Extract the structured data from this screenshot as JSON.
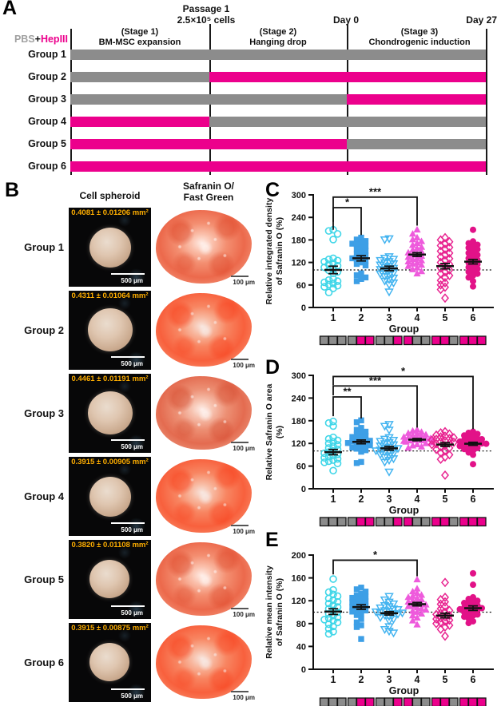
{
  "colors": {
    "pbs_gray": "#8C8C8C",
    "hep_magenta": "#EC008C",
    "area_text_orange": "#FFAE00",
    "axis_black": "#1a1a1a",
    "legend_pbs_gray": "#A0A0A0"
  },
  "panelA": {
    "label": "A",
    "legend": {
      "pbs": "PBS",
      "plus": "+",
      "hep": "HepIII"
    },
    "milestones": {
      "passage_line1": "Passage 1",
      "passage_line2": "2.5×10⁵ cells",
      "day0": "Day 0",
      "day27": "Day 27"
    },
    "stages": [
      {
        "title": "(Stage 1)",
        "desc": "BM-MSC expansion"
      },
      {
        "title": "(Stage 2)",
        "desc": "Hanging drop"
      },
      {
        "title": "(Stage 3)",
        "desc": "Chondrogenic induction"
      }
    ],
    "groups": [
      {
        "name": "Group 1",
        "segments": [
          "gray",
          "gray",
          "gray"
        ]
      },
      {
        "name": "Group 2",
        "segments": [
          "gray",
          "magenta",
          "magenta"
        ]
      },
      {
        "name": "Group 3",
        "segments": [
          "gray",
          "gray",
          "magenta"
        ]
      },
      {
        "name": "Group 4",
        "segments": [
          "magenta",
          "gray",
          "gray"
        ]
      },
      {
        "name": "Group 5",
        "segments": [
          "magenta",
          "magenta",
          "gray"
        ]
      },
      {
        "name": "Group 6",
        "segments": [
          "magenta",
          "magenta",
          "magenta"
        ]
      }
    ]
  },
  "panelB": {
    "label": "B",
    "col1_header": "Cell spheroid",
    "col2_header_line1": "Safranin O/",
    "col2_header_line2": "Fast Green",
    "scale_spheroid": "500 μm",
    "scale_stain": "100 μm",
    "rows": [
      {
        "group": "Group 1",
        "area": "0.4081 ± 0.01206 mm²"
      },
      {
        "group": "Group 2",
        "area": "0.4311 ± 0.01064 mm²"
      },
      {
        "group": "Group 3",
        "area": "0.4461 ± 0.01191 mm²"
      },
      {
        "group": "Group 4",
        "area": "0.3915 ± 0.00905 mm²"
      },
      {
        "group": "Group 5",
        "area": "0.3820 ± 0.01108 mm²"
      },
      {
        "group": "Group 6",
        "area": "0.3915 ± 0.00875 mm²"
      }
    ]
  },
  "chart_data": [
    {
      "id": "C",
      "panel_label": "C",
      "type": "scatter",
      "ylabel_lines": [
        "Relative integrated density",
        "of Safranin O (%)"
      ],
      "xlabel": "Group",
      "ylim": [
        0,
        300
      ],
      "yticks": [
        0,
        60,
        120,
        180,
        240,
        300
      ],
      "baseline": 100,
      "categories": [
        "1",
        "2",
        "3",
        "4",
        "5",
        "6"
      ],
      "legend_position": "none",
      "series": [
        {
          "group": "1",
          "marker": "circle-open",
          "color": "#3FD6E8",
          "mean": 100,
          "sem": 10,
          "values": [
            207,
            204,
            196,
            181,
            131,
            128,
            125,
            122,
            118,
            115,
            111,
            107,
            103,
            99,
            95,
            91,
            76,
            73,
            70,
            67,
            64,
            61,
            58,
            55,
            51,
            40
          ]
        },
        {
          "group": "2",
          "marker": "square-fill",
          "color": "#3D9FE6",
          "mean": 131,
          "sem": 7,
          "values": [
            186,
            181,
            177,
            173,
            170,
            167,
            163,
            159,
            155,
            151,
            146,
            142,
            138,
            134,
            131,
            128,
            124,
            120,
            116,
            112,
            91,
            86,
            80,
            76,
            70
          ]
        },
        {
          "group": "3",
          "marker": "triangle-down-open",
          "color": "#44B4F0",
          "mean": 104,
          "sem": 6,
          "values": [
            184,
            181,
            136,
            132,
            129,
            126,
            123,
            120,
            117,
            114,
            111,
            108,
            105,
            102,
            99,
            96,
            93,
            90,
            87,
            83,
            79,
            75,
            71,
            66,
            61,
            42
          ]
        },
        {
          "group": "4",
          "marker": "triangle-up-fill",
          "color": "#EE5ADC",
          "mean": 141,
          "sem": 5,
          "values": [
            207,
            196,
            186,
            181,
            176,
            171,
            166,
            161,
            157,
            153,
            149,
            146,
            143,
            140,
            137,
            134,
            131,
            128,
            125,
            122,
            119,
            116,
            113,
            110,
            106,
            101,
            96,
            90
          ]
        },
        {
          "group": "5",
          "marker": "diamond-open",
          "color": "#E82490",
          "mean": 110,
          "sem": 7,
          "values": [
            186,
            180,
            175,
            170,
            165,
            160,
            155,
            150,
            145,
            140,
            135,
            130,
            125,
            120,
            115,
            110,
            105,
            100,
            95,
            90,
            85,
            80,
            72,
            66,
            60,
            54,
            48,
            25
          ]
        },
        {
          "group": "6",
          "marker": "circle-fill",
          "color": "#E21288",
          "mean": 122,
          "sem": 6,
          "values": [
            207,
            176,
            171,
            167,
            163,
            159,
            155,
            150,
            145,
            140,
            135,
            131,
            127,
            123,
            119,
            115,
            111,
            107,
            103,
            99,
            95,
            90,
            85,
            80,
            70,
            56
          ]
        }
      ],
      "significance": [
        {
          "from": 1,
          "to": 2,
          "label": "*",
          "bar": 266,
          "leg_from": 207,
          "leg_to": 193
        },
        {
          "from": 1,
          "to": 4,
          "label": "***",
          "bar": 294,
          "leg_from": 228,
          "leg_to": 218
        }
      ]
    },
    {
      "id": "D",
      "panel_label": "D",
      "type": "scatter",
      "ylabel_lines": [
        "Relative Safranin O area",
        "(%)"
      ],
      "xlabel": "Group",
      "ylim": [
        0,
        300
      ],
      "yticks": [
        0,
        60,
        120,
        180,
        240,
        300
      ],
      "baseline": 100,
      "categories": [
        "1",
        "2",
        "3",
        "4",
        "5",
        "6"
      ],
      "legend_position": "none",
      "series": [
        {
          "group": "1",
          "marker": "circle-open",
          "color": "#3FD6E8",
          "mean": 97,
          "sem": 7,
          "values": [
            178,
            174,
            166,
            136,
            132,
            128,
            124,
            120,
            116,
            112,
            108,
            104,
            100,
            97,
            94,
            91,
            88,
            85,
            82,
            79,
            76,
            73,
            70,
            67,
            48
          ]
        },
        {
          "group": "2",
          "marker": "square-fill",
          "color": "#3D9FE6",
          "mean": 124,
          "sem": 5,
          "values": [
            181,
            176,
            161,
            156,
            151,
            147,
            143,
            140,
            137,
            134,
            131,
            129,
            127,
            125,
            123,
            121,
            119,
            117,
            115,
            112,
            109,
            106,
            102,
            98,
            71,
            68
          ]
        },
        {
          "group": "3",
          "marker": "triangle-down-open",
          "color": "#44B4F0",
          "mean": 107,
          "sem": 5,
          "values": [
            171,
            166,
            156,
            136,
            132,
            129,
            126,
            123,
            120,
            117,
            114,
            111,
            109,
            107,
            105,
            103,
            101,
            99,
            97,
            94,
            91,
            88,
            84,
            80,
            76,
            71,
            45
          ]
        },
        {
          "group": "4",
          "marker": "triangle-up-fill",
          "color": "#EE5ADC",
          "mean": 130,
          "sem": 3,
          "values": [
            156,
            153,
            150,
            147,
            145,
            143,
            141,
            139,
            137,
            135,
            134,
            133,
            132,
            131,
            130,
            129,
            128,
            127,
            126,
            124,
            122,
            120,
            117,
            114,
            111,
            108
          ]
        },
        {
          "group": "5",
          "marker": "diamond-open",
          "color": "#E82490",
          "mean": 117,
          "sem": 5,
          "values": [
            151,
            148,
            145,
            142,
            139,
            137,
            135,
            133,
            131,
            129,
            127,
            125,
            123,
            121,
            119,
            117,
            114,
            111,
            108,
            104,
            100,
            95,
            90,
            84,
            78,
            36
          ]
        },
        {
          "group": "6",
          "marker": "circle-fill",
          "color": "#E21288",
          "mean": 119,
          "sem": 4,
          "values": [
            151,
            148,
            145,
            141,
            138,
            135,
            133,
            131,
            129,
            127,
            125,
            123,
            121,
            120,
            119,
            117,
            115,
            113,
            111,
            108,
            105,
            101,
            96,
            90,
            65
          ]
        }
      ],
      "significance": [
        {
          "from": 1,
          "to": 2,
          "label": "**",
          "bar": 243,
          "leg_from": 192,
          "leg_to": 186
        },
        {
          "from": 1,
          "to": 4,
          "label": "***",
          "bar": 272,
          "leg_from": 247,
          "leg_to": 162
        },
        {
          "from": 1,
          "to": 6,
          "label": "*",
          "bar": 297,
          "leg_from": 274,
          "leg_to": 158
        }
      ]
    },
    {
      "id": "E",
      "panel_label": "E",
      "type": "scatter",
      "ylabel_lines": [
        "Relative mean intensity",
        "of Safranin O (%)"
      ],
      "xlabel": "Group",
      "ylim": [
        0,
        200
      ],
      "yticks": [
        0,
        40,
        80,
        120,
        160,
        200
      ],
      "baseline": 100,
      "categories": [
        "1",
        "2",
        "3",
        "4",
        "5",
        "6"
      ],
      "legend_position": "none",
      "series": [
        {
          "group": "1",
          "marker": "circle-open",
          "color": "#3FD6E8",
          "mean": 101,
          "sem": 5,
          "values": [
            158,
            139,
            135,
            131,
            128,
            124,
            121,
            118,
            115,
            112,
            109,
            106,
            103,
            100,
            97,
            94,
            91,
            89,
            87,
            85,
            82,
            79,
            75,
            71,
            66,
            62
          ]
        },
        {
          "group": "2",
          "marker": "square-fill",
          "color": "#3D9FE6",
          "mean": 109,
          "sem": 4,
          "values": [
            143,
            140,
            136,
            132,
            129,
            127,
            125,
            123,
            121,
            119,
            117,
            115,
            113,
            111,
            109,
            107,
            105,
            103,
            101,
            98,
            95,
            88,
            82,
            77,
            74,
            53
          ]
        },
        {
          "group": "3",
          "marker": "triangle-down-open",
          "color": "#44B4F0",
          "mean": 98,
          "sem": 3,
          "values": [
            128,
            122,
            118,
            115,
            112,
            110,
            108,
            106,
            105,
            103,
            102,
            101,
            100,
            99,
            98,
            97,
            95,
            93,
            91,
            88,
            85,
            75,
            70,
            67,
            64
          ]
        },
        {
          "group": "4",
          "marker": "triangle-up-fill",
          "color": "#EE5ADC",
          "mean": 114,
          "sem": 3,
          "values": [
            157,
            141,
            136,
            133,
            130,
            128,
            126,
            124,
            122,
            120,
            118,
            116,
            114,
            113,
            111,
            110,
            108,
            106,
            104,
            102,
            100,
            97,
            94,
            90,
            85,
            78
          ]
        },
        {
          "group": "5",
          "marker": "diamond-open",
          "color": "#E82490",
          "mean": 94,
          "sem": 4,
          "values": [
            152,
            126,
            122,
            118,
            114,
            110,
            106,
            103,
            100,
            98,
            96,
            94,
            92,
            90,
            88,
            86,
            84,
            82,
            80,
            77,
            74,
            70,
            58
          ]
        },
        {
          "group": "6",
          "marker": "circle-fill",
          "color": "#E21288",
          "mean": 107,
          "sem": 4,
          "values": [
            168,
            148,
            126,
            123,
            120,
            118,
            116,
            114,
            112,
            110,
            108,
            107,
            106,
            105,
            104,
            102,
            100,
            98,
            96,
            94,
            92,
            89,
            84,
            81
          ]
        }
      ],
      "significance": [
        {
          "from": 1,
          "to": 4,
          "label": "*",
          "bar": 191,
          "leg_from": 166,
          "leg_to": 163
        }
      ]
    }
  ]
}
